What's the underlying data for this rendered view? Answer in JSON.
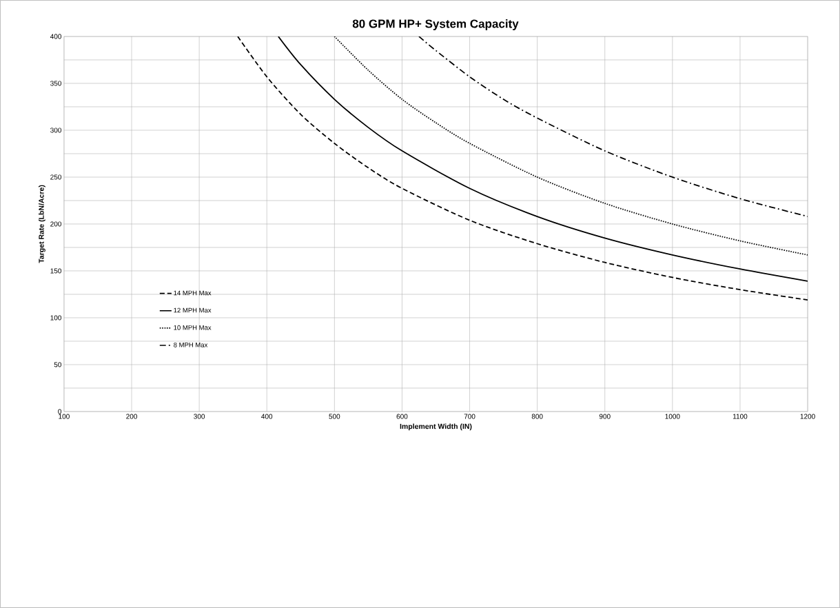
{
  "chart_data": {
    "type": "line",
    "title": "80 GPM HP+ System Capacity",
    "xlabel": "Implement Width (IN)",
    "ylabel": "Target Rate (LbN/Acre)",
    "xlim": [
      100,
      1200
    ],
    "ylim": [
      0,
      400
    ],
    "xticks": [
      100,
      200,
      300,
      400,
      500,
      600,
      700,
      800,
      900,
      1000,
      1100,
      1200
    ],
    "yticks": [
      0,
      50,
      100,
      150,
      200,
      250,
      300,
      350,
      400
    ],
    "grid": true,
    "legend": "left",
    "marker": "none",
    "series": [
      {
        "name": "14 MPH Max",
        "color": "#000000",
        "line_style": "dashed",
        "x": [
          357,
          400,
          450,
          500,
          550,
          600,
          700,
          800,
          900,
          1000,
          1100,
          1200
        ],
        "values": [
          400,
          357,
          317,
          286,
          260,
          238,
          204,
          179,
          159,
          143,
          130,
          119
        ]
      },
      {
        "name": "12 MPH Max",
        "color": "#000000",
        "line_style": "solid",
        "x": [
          417,
          450,
          500,
          550,
          600,
          700,
          800,
          900,
          1000,
          1100,
          1200
        ],
        "values": [
          400,
          370,
          333,
          303,
          278,
          238,
          208,
          185,
          167,
          152,
          139
        ]
      },
      {
        "name": "10 MPH Max",
        "color": "#000000",
        "line_style": "dotted",
        "x": [
          500,
          550,
          600,
          650,
          700,
          800,
          900,
          1000,
          1100,
          1200
        ],
        "values": [
          400,
          364,
          333,
          308,
          286,
          250,
          222,
          200,
          182,
          167
        ]
      },
      {
        "name": "8 MPH Max",
        "color": "#000000",
        "line_style": "dashdot",
        "x": [
          625,
          650,
          700,
          750,
          800,
          900,
          1000,
          1100,
          1200
        ],
        "values": [
          400,
          385,
          357,
          333,
          313,
          278,
          250,
          227,
          208
        ]
      }
    ]
  }
}
